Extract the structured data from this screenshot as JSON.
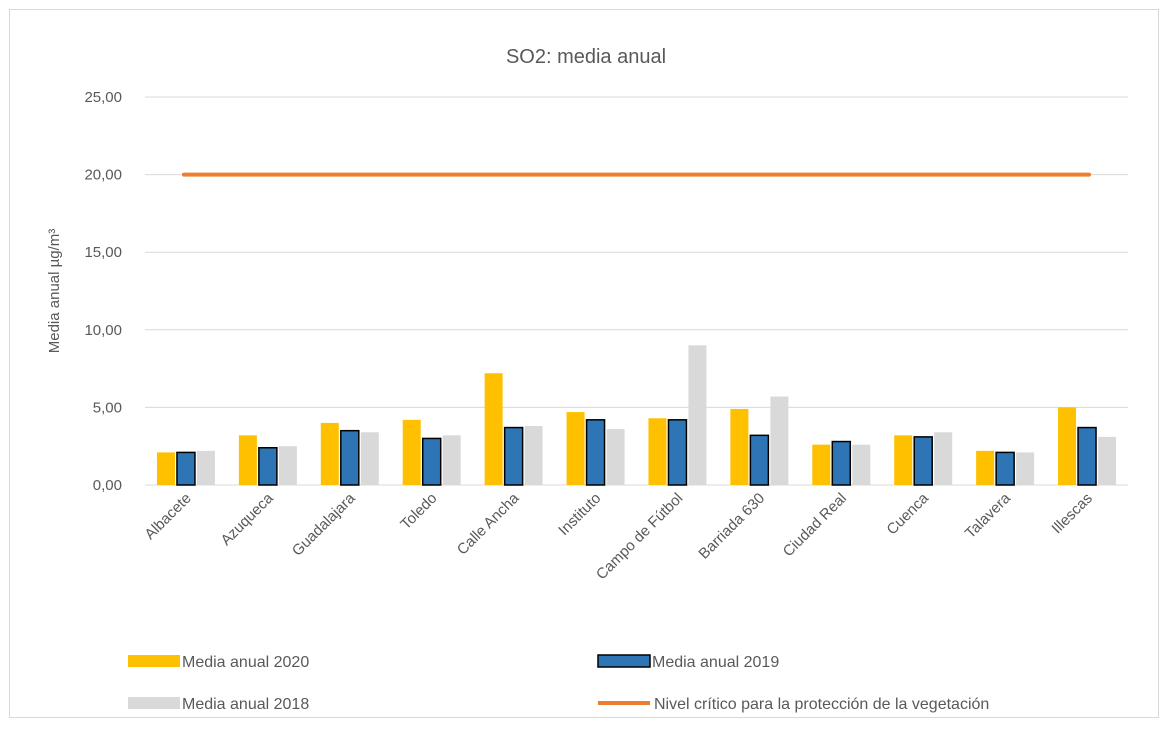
{
  "chart_data": {
    "type": "bar",
    "title": "SO2: media anual",
    "ylabel": "Media anual µg/m³",
    "xlabel": "",
    "ylim": [
      0,
      25
    ],
    "yticks": [
      "0,00",
      "5,00",
      "10,00",
      "15,00",
      "20,00",
      "25,00"
    ],
    "grid": true,
    "legend_position": "bottom",
    "categories": [
      "Albacete",
      "Azuqueca",
      "Guadalajara",
      "Toledo",
      "Calle Ancha",
      "Instituto",
      "Campo de Fútbol",
      "Barriada 630",
      "Ciudad Real",
      "Cuenca",
      "Talavera",
      "Illescas"
    ],
    "series": [
      {
        "name": "Media anual 2020",
        "color": "#FFC000",
        "values": [
          2.1,
          3.2,
          4.0,
          4.2,
          7.2,
          4.7,
          4.3,
          4.9,
          2.6,
          3.2,
          2.2,
          5.0
        ]
      },
      {
        "name": "Media anual 2019",
        "color": "#2E75B6",
        "outline": "#000000",
        "values": [
          2.1,
          2.4,
          3.5,
          3.0,
          3.7,
          4.2,
          4.2,
          3.2,
          2.8,
          3.1,
          2.1,
          3.7
        ]
      },
      {
        "name": "Media anual 2018",
        "color": "#D9D9D9",
        "values": [
          2.2,
          2.5,
          3.4,
          3.2,
          3.8,
          3.6,
          9.0,
          5.7,
          2.6,
          3.4,
          2.1,
          3.1
        ]
      }
    ],
    "reference_line": {
      "name": "Nivel crítico para la protección de la vegetación",
      "color": "#ED7D31",
      "value": 20
    }
  }
}
